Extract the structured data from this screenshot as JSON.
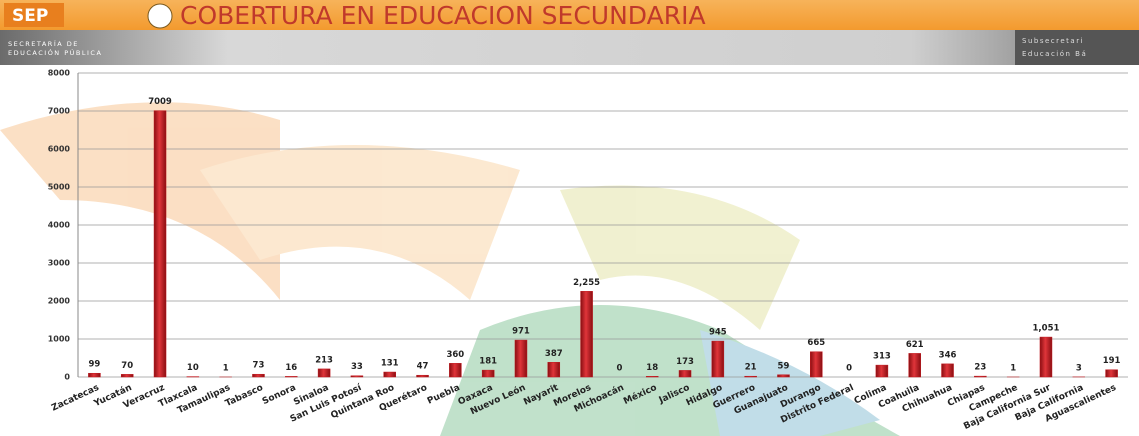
{
  "header": {
    "logo": "SEP",
    "title": "COBERTURA EN EDUCACION SECUNDARIA",
    "subtitle_line1": "SECRETARÍA DE",
    "subtitle_line2": "EDUCACIÓN PÚBLICA",
    "right_line1": "Subsecretari",
    "right_line2": "Educación Bá"
  },
  "chart_data": {
    "type": "bar",
    "categories": [
      "Zacatecas",
      "Yucatán",
      "Veracruz",
      "Tlaxcala",
      "Tamaulipas",
      "Tabasco",
      "Sonora",
      "Sinaloa",
      "San Luis Potosí",
      "Quintana Roo",
      "Querétaro",
      "Puebla",
      "Oaxaca",
      "Nuevo León",
      "Nayarit",
      "Morelos",
      "Michoacán",
      "México",
      "Jalisco",
      "Hidalgo",
      "Guerrero",
      "Guanajuato",
      "Durango",
      "Distrito Federal",
      "Colima",
      "Coahuila",
      "Chihuahua",
      "Chiapas",
      "Campeche",
      "Baja California Sur",
      "Baja California",
      "Aguascalientes"
    ],
    "values": [
      99,
      70,
      7009,
      10,
      1,
      73,
      16,
      213,
      33,
      131,
      47,
      360,
      181,
      971,
      387,
      2255,
      0,
      18,
      173,
      945,
      21,
      59,
      665,
      0,
      313,
      621,
      346,
      23,
      1,
      1051,
      3,
      191
    ],
    "value_labels": [
      "99",
      "70",
      "7009",
      "10",
      "1",
      "73",
      "16",
      "213",
      "33",
      "131",
      "47",
      "360",
      "181",
      "971",
      "387",
      "2,255",
      "0",
      "18",
      "173",
      "945",
      "21",
      "59",
      "665",
      "0",
      "313",
      "621",
      "346",
      "23",
      "1",
      "1,051",
      "3",
      "191"
    ],
    "color": "#c0171d",
    "ylim": [
      0,
      8000
    ],
    "yticks": [
      0,
      1000,
      2000,
      3000,
      4000,
      5000,
      6000,
      7000,
      8000
    ],
    "grid": true
  }
}
